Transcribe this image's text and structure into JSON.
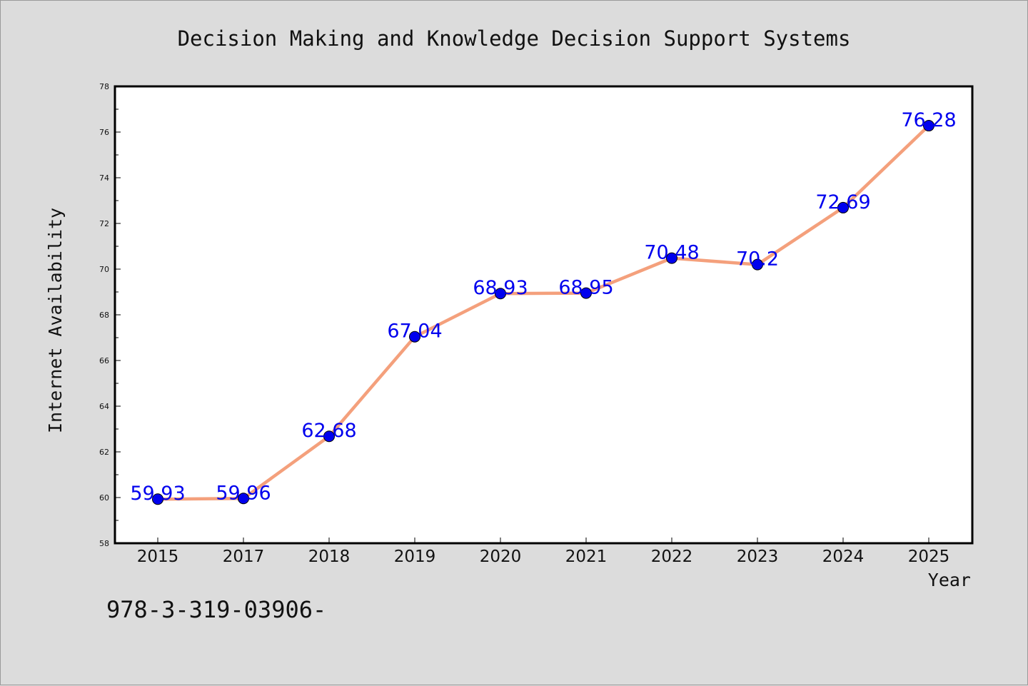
{
  "chart_data": {
    "type": "line",
    "title": "Decision Making and Knowledge Decision Support Systems",
    "xlabel": "Year",
    "ylabel": "Internet Availability",
    "categories": [
      "2015",
      "2017",
      "2018",
      "2019",
      "2020",
      "2021",
      "2022",
      "2023",
      "2024",
      "2025"
    ],
    "series": [
      {
        "values": [
          59.93,
          59.96,
          62.68,
          67.04,
          68.93,
          68.95,
          70.48,
          70.2,
          72.69,
          76.28
        ],
        "labels": [
          "59.93",
          "59.96",
          "62.68",
          "67.04",
          "68.93",
          "68.95",
          "70.48",
          "70.2",
          "72.69",
          "76.28"
        ]
      }
    ],
    "ylim": [
      58,
      78
    ],
    "yticks": [
      58,
      60,
      62,
      64,
      66,
      68,
      70,
      72,
      74,
      76,
      78
    ],
    "grid": false,
    "legend": "none",
    "line_color": "#f4a07c",
    "marker_color": "#0000ee",
    "label_color": "#0000ee",
    "annotation": "978-3-319-03906-"
  }
}
